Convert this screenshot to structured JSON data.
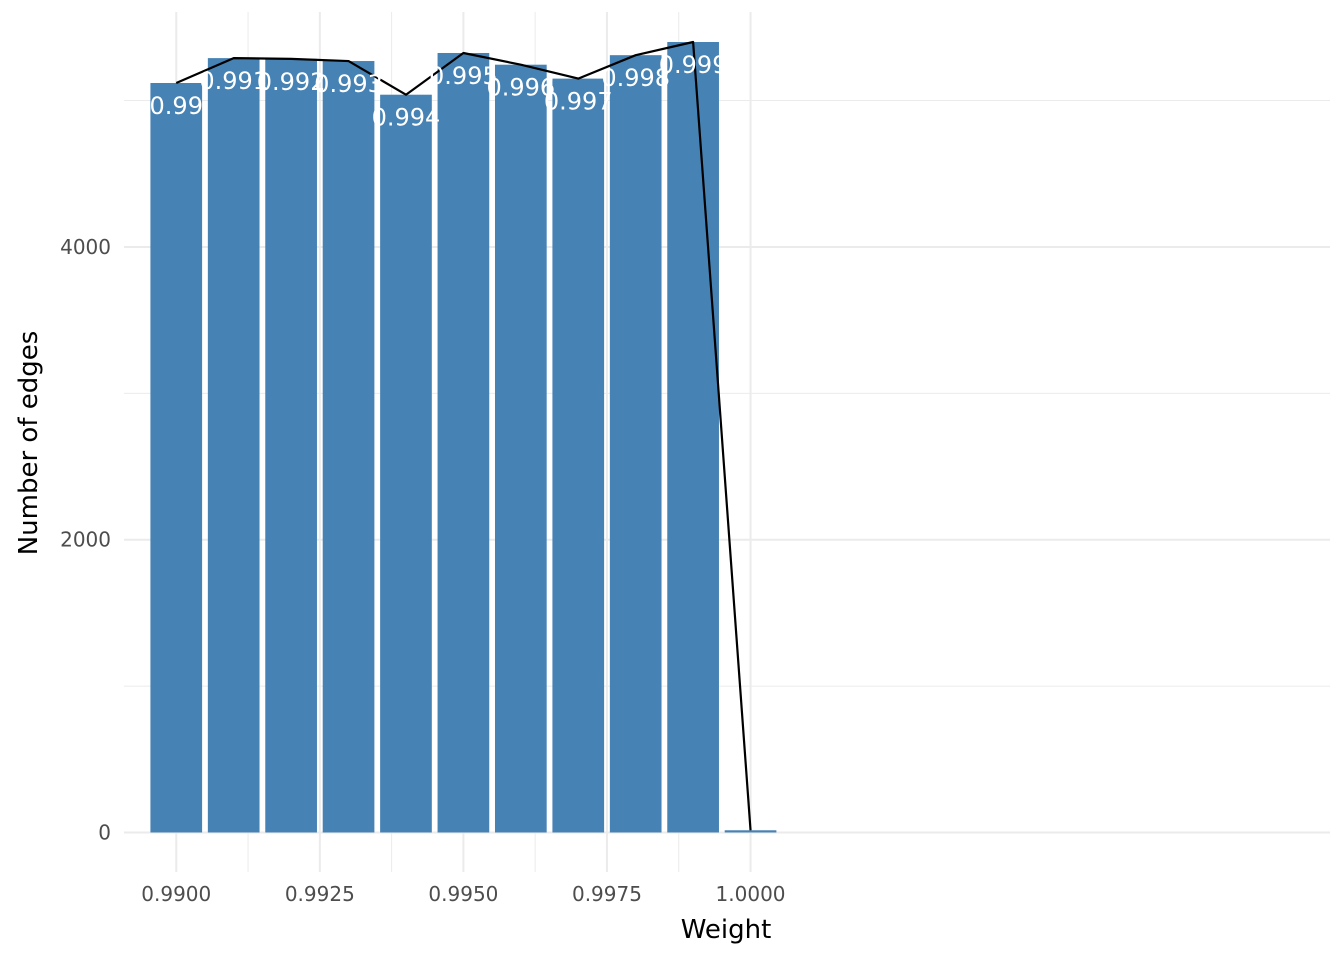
{
  "chart_data": {
    "type": "bar",
    "xlabel": "Weight",
    "ylabel": "Number of edges",
    "xlim": [
      0.98909,
      1.01009
    ],
    "ylim": [
      -270,
      5605
    ],
    "x_ticks": [
      0.99,
      0.9925,
      0.995,
      0.9975,
      1.0
    ],
    "x_tick_labels": [
      "0.9900",
      "0.9925",
      "0.9950",
      "0.9975",
      "1.0000"
    ],
    "y_ticks": [
      0,
      2000,
      4000
    ],
    "y_tick_labels": [
      "0",
      "2000",
      "4000"
    ],
    "x": [
      0.99,
      0.991,
      0.992,
      0.993,
      0.994,
      0.995,
      0.996,
      0.997,
      0.998,
      0.999,
      1.0
    ],
    "values": [
      5120,
      5290,
      5285,
      5270,
      5040,
      5325,
      5245,
      5150,
      5310,
      5400,
      15
    ],
    "bar_labels": [
      "0.99",
      "0.991",
      "0.992",
      "0.993",
      "0.994",
      "0.995",
      "0.996",
      "0.997",
      "0.998",
      "0.999",
      ""
    ],
    "bar_color": "#4682b4",
    "line_color": "#000000",
    "grid": true,
    "legend": "none"
  }
}
